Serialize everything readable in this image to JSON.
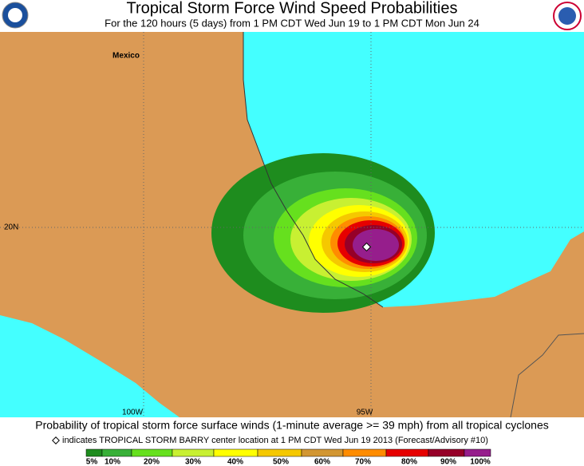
{
  "header": {
    "title": "Tropical Storm Force Wind Speed Probabilities",
    "subtitle": "For the 120 hours (5 days) from 1 PM CDT Wed Jun 19 to 1 PM CDT Mon Jun 24"
  },
  "map": {
    "country": "Mexico",
    "lat_label": "20N",
    "lon_labels": [
      "100W",
      "95W"
    ]
  },
  "footer": {
    "caption": "Probability of tropical storm force surface winds (1-minute average >= 39 mph) from all tropical cyclones",
    "marker_note": "indicates TROPICAL STORM BARRY center location at 1 PM CDT Wed Jun 19 2013 (Forecast/Advisory #10)"
  },
  "legend": {
    "labels": [
      "5%",
      "10%",
      "20%",
      "30%",
      "40%",
      "50%",
      "60%",
      "70%",
      "80%",
      "90%",
      "100%"
    ]
  }
}
